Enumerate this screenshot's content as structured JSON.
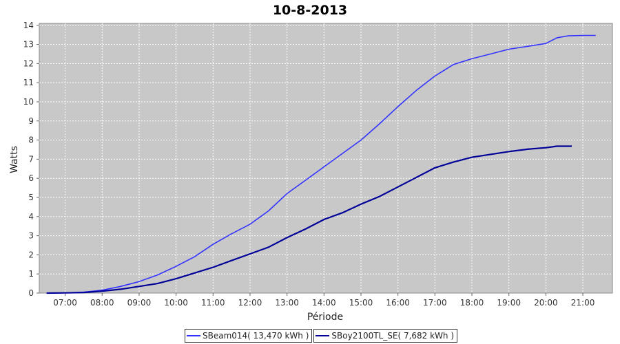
{
  "chart_data": {
    "type": "line",
    "title": "10-8-2013",
    "xlabel": "Période",
    "ylabel": "Watts",
    "x_ticks": [
      "07:00",
      "08:00",
      "09:00",
      "10:00",
      "11:00",
      "12:00",
      "13:00",
      "14:00",
      "15:00",
      "16:00",
      "17:00",
      "18:00",
      "19:00",
      "20:00",
      "21:00"
    ],
    "x_tick_hours": [
      7,
      8,
      9,
      10,
      11,
      12,
      13,
      14,
      15,
      16,
      17,
      18,
      19,
      20,
      21
    ],
    "xlim": [
      6.3,
      21.8
    ],
    "y_ticks": [
      "0",
      "1",
      "2",
      "3",
      "4",
      "5",
      "6",
      "7",
      "8",
      "9",
      "10",
      "11",
      "12",
      "13",
      "14"
    ],
    "ylim": [
      0,
      14.1
    ],
    "grid": true,
    "legend_position": "bottom",
    "series": [
      {
        "name": "SBeam014( 13,470 kWh )",
        "color": "#3333ff",
        "x": [
          6.5,
          7.0,
          7.5,
          8.0,
          8.5,
          9.0,
          9.5,
          10.0,
          10.5,
          11.0,
          11.5,
          12.0,
          12.5,
          13.0,
          13.5,
          14.0,
          14.5,
          15.0,
          15.5,
          16.0,
          16.5,
          17.0,
          17.5,
          18.0,
          18.5,
          19.0,
          19.5,
          20.0,
          20.3,
          20.6,
          21.0,
          21.35
        ],
        "y": [
          0,
          0.01,
          0.05,
          0.15,
          0.35,
          0.6,
          0.95,
          1.4,
          1.9,
          2.55,
          3.1,
          3.6,
          4.3,
          5.2,
          5.9,
          6.6,
          7.3,
          8.0,
          8.85,
          9.75,
          10.6,
          11.35,
          11.95,
          12.25,
          12.5,
          12.75,
          12.9,
          13.05,
          13.35,
          13.45,
          13.47,
          13.47
        ]
      },
      {
        "name": "SBoy2100TL_SE( 7,682 kWh )",
        "color": "#000099",
        "x": [
          6.5,
          7.0,
          7.5,
          8.0,
          8.5,
          9.0,
          9.5,
          10.0,
          10.5,
          11.0,
          11.5,
          12.0,
          12.5,
          13.0,
          13.5,
          14.0,
          14.5,
          15.0,
          15.5,
          16.0,
          16.5,
          17.0,
          17.5,
          18.0,
          18.5,
          19.0,
          19.5,
          20.0,
          20.3,
          20.7
        ],
        "y": [
          0,
          0.01,
          0.03,
          0.1,
          0.2,
          0.35,
          0.5,
          0.75,
          1.05,
          1.35,
          1.7,
          2.05,
          2.4,
          2.9,
          3.35,
          3.85,
          4.2,
          4.65,
          5.05,
          5.55,
          6.05,
          6.55,
          6.85,
          7.1,
          7.25,
          7.4,
          7.52,
          7.6,
          7.68,
          7.68
        ]
      }
    ]
  }
}
